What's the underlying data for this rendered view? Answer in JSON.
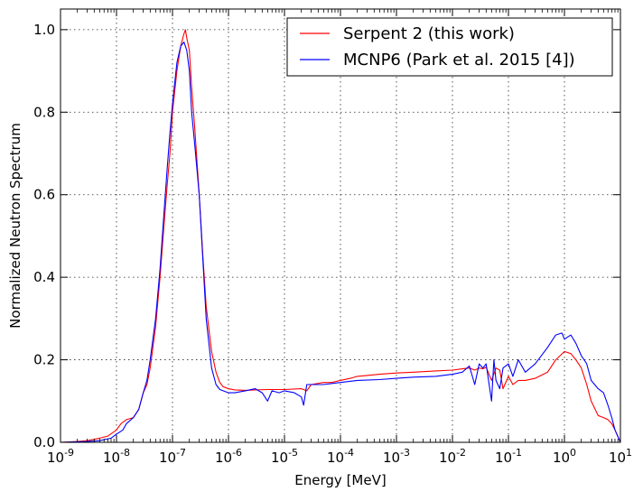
{
  "chart_data": {
    "type": "line",
    "xscale": "log",
    "xlim": [
      1e-09,
      10
    ],
    "ylim": [
      0.0,
      1.05
    ],
    "grid": true,
    "legend_position": "top-right",
    "xlabel": "Energy [MeV]",
    "ylabel": "Normalized Neutron Spectrum",
    "x_ticks": [
      1e-09,
      1e-08,
      1e-07,
      1e-06,
      1e-05,
      0.0001,
      0.001,
      0.01,
      0.1,
      1,
      10
    ],
    "x_tick_labels": [
      {
        "base": "10",
        "exp": "-9"
      },
      {
        "base": "10",
        "exp": "-8"
      },
      {
        "base": "10",
        "exp": "-7"
      },
      {
        "base": "10",
        "exp": "-6"
      },
      {
        "base": "10",
        "exp": "-5"
      },
      {
        "base": "10",
        "exp": "-4"
      },
      {
        "base": "10",
        "exp": "-3"
      },
      {
        "base": "10",
        "exp": "-2"
      },
      {
        "base": "10",
        "exp": "-1"
      },
      {
        "base": "10",
        "exp": "0"
      },
      {
        "base": "10",
        "exp": "1"
      }
    ],
    "y_ticks": [
      0.0,
      0.2,
      0.4,
      0.6,
      0.8,
      1.0
    ],
    "y_tick_labels": [
      "0.0",
      "0.2",
      "0.4",
      "0.6",
      "0.8",
      "1.0"
    ],
    "series": [
      {
        "name": "Serpent 2 (this work)",
        "color": "#ff0000",
        "x": [
          1e-09,
          2e-09,
          3e-09,
          5e-09,
          7e-09,
          1e-08,
          1.2e-08,
          1.5e-08,
          2e-08,
          2.5e-08,
          3e-08,
          3.5e-08,
          4e-08,
          5e-08,
          6e-08,
          7e-08,
          8e-08,
          9e-08,
          1e-07,
          1.2e-07,
          1.4e-07,
          1.6e-07,
          1.7e-07,
          1.8e-07,
          2e-07,
          2.2e-07,
          2.5e-07,
          3e-07,
          3.5e-07,
          4e-07,
          5e-07,
          6e-07,
          7e-07,
          8e-07,
          1e-06,
          1.3e-06,
          2e-06,
          3e-06,
          5e-06,
          1e-05,
          2e-05,
          2.5e-05,
          3e-05,
          5e-05,
          7e-05,
          0.0001,
          0.00015,
          0.0002,
          0.0003,
          0.0005,
          0.001,
          0.002,
          0.005,
          0.01,
          0.015,
          0.02,
          0.025,
          0.03,
          0.035,
          0.04,
          0.05,
          0.06,
          0.07,
          0.08,
          0.1,
          0.12,
          0.15,
          0.2,
          0.3,
          0.5,
          0.7,
          1,
          1.3,
          1.6,
          2,
          2.5,
          3,
          4,
          5,
          6,
          7,
          8,
          10
        ],
        "y": [
          0.0,
          0.002,
          0.004,
          0.01,
          0.015,
          0.03,
          0.045,
          0.055,
          0.06,
          0.08,
          0.12,
          0.14,
          0.18,
          0.28,
          0.4,
          0.52,
          0.62,
          0.7,
          0.8,
          0.9,
          0.96,
          0.99,
          1.0,
          0.98,
          0.95,
          0.86,
          0.76,
          0.6,
          0.45,
          0.33,
          0.22,
          0.17,
          0.145,
          0.135,
          0.13,
          0.127,
          0.126,
          0.127,
          0.128,
          0.128,
          0.13,
          0.125,
          0.14,
          0.145,
          0.145,
          0.15,
          0.155,
          0.16,
          0.162,
          0.165,
          0.168,
          0.17,
          0.173,
          0.175,
          0.178,
          0.18,
          0.175,
          0.18,
          0.178,
          0.182,
          0.15,
          0.18,
          0.175,
          0.13,
          0.16,
          0.14,
          0.15,
          0.15,
          0.155,
          0.17,
          0.2,
          0.22,
          0.215,
          0.2,
          0.18,
          0.14,
          0.1,
          0.065,
          0.06,
          0.055,
          0.045,
          0.03,
          0.0
        ]
      },
      {
        "name": "MCNP6 (Park et al. 2015 [4])",
        "color": "#0000ff",
        "x": [
          1e-09,
          3e-09,
          5e-09,
          8e-09,
          1e-08,
          1.3e-08,
          1.5e-08,
          2e-08,
          2.5e-08,
          3e-08,
          3.5e-08,
          4e-08,
          5e-08,
          6e-08,
          7e-08,
          8e-08,
          9e-08,
          1e-07,
          1.2e-07,
          1.4e-07,
          1.6e-07,
          1.8e-07,
          2e-07,
          2.2e-07,
          2.5e-07,
          3e-07,
          3.5e-07,
          4e-07,
          5e-07,
          6e-07,
          7e-07,
          8e-07,
          1e-06,
          1.3e-06,
          2e-06,
          3e-06,
          4e-06,
          5e-06,
          6e-06,
          8e-06,
          1e-05,
          1.5e-05,
          2e-05,
          2.2e-05,
          2.5e-05,
          3e-05,
          5e-05,
          0.0001,
          0.0002,
          0.0005,
          0.001,
          0.002,
          0.005,
          0.01,
          0.015,
          0.02,
          0.025,
          0.03,
          0.035,
          0.04,
          0.05,
          0.055,
          0.06,
          0.07,
          0.08,
          0.1,
          0.12,
          0.15,
          0.2,
          0.3,
          0.5,
          0.7,
          0.9,
          1,
          1.3,
          1.6,
          2,
          2.5,
          3,
          4,
          5,
          6,
          7,
          8,
          10
        ],
        "y": [
          0.0,
          0.002,
          0.004,
          0.01,
          0.02,
          0.03,
          0.045,
          0.06,
          0.08,
          0.12,
          0.15,
          0.2,
          0.3,
          0.42,
          0.55,
          0.66,
          0.75,
          0.82,
          0.92,
          0.96,
          0.97,
          0.95,
          0.9,
          0.8,
          0.72,
          0.6,
          0.44,
          0.3,
          0.18,
          0.14,
          0.128,
          0.125,
          0.12,
          0.12,
          0.125,
          0.13,
          0.12,
          0.1,
          0.125,
          0.12,
          0.125,
          0.12,
          0.11,
          0.09,
          0.14,
          0.14,
          0.14,
          0.145,
          0.15,
          0.152,
          0.155,
          0.158,
          0.16,
          0.165,
          0.17,
          0.185,
          0.14,
          0.19,
          0.18,
          0.19,
          0.1,
          0.2,
          0.15,
          0.13,
          0.18,
          0.19,
          0.16,
          0.2,
          0.17,
          0.19,
          0.23,
          0.26,
          0.265,
          0.25,
          0.26,
          0.24,
          0.21,
          0.19,
          0.15,
          0.13,
          0.12,
          0.09,
          0.06,
          0.03,
          0.0
        ]
      }
    ]
  }
}
